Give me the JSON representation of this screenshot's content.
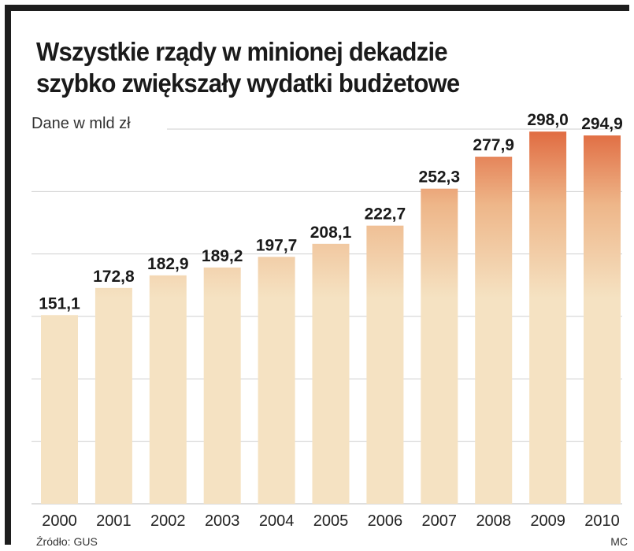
{
  "chart_data": {
    "type": "bar",
    "title": "Wszystkie rządy w minionej dekadzie szybko zwiększały wydatki budżetowe",
    "title_lines": [
      "Wszystkie rządy w minionej dekadzie",
      "szybko zwiększały wydatki budżetowe"
    ],
    "ylabel": "Dane w mld zł",
    "categories": [
      "2000",
      "2001",
      "2002",
      "2003",
      "2004",
      "2005",
      "2006",
      "2007",
      "2008",
      "2009",
      "2010"
    ],
    "values": [
      151.1,
      172.8,
      182.9,
      189.2,
      197.7,
      208.1,
      222.7,
      252.3,
      277.9,
      298.0,
      294.9
    ],
    "value_labels": [
      "151,1",
      "172,8",
      "182,9",
      "189,2",
      "197,7",
      "208,1",
      "222,7",
      "252,3",
      "277,9",
      "298,0",
      "294,9"
    ],
    "ylim": [
      0,
      300
    ],
    "grid": true,
    "colors": {
      "bar_light": "#f5e2c2",
      "bar_mid": "#eeb689",
      "bar_dark": "#e06a40",
      "grid": "#cfcfcf",
      "frame": "#1e1e1e"
    }
  },
  "source": "Źródło: GUS",
  "author": "MC"
}
